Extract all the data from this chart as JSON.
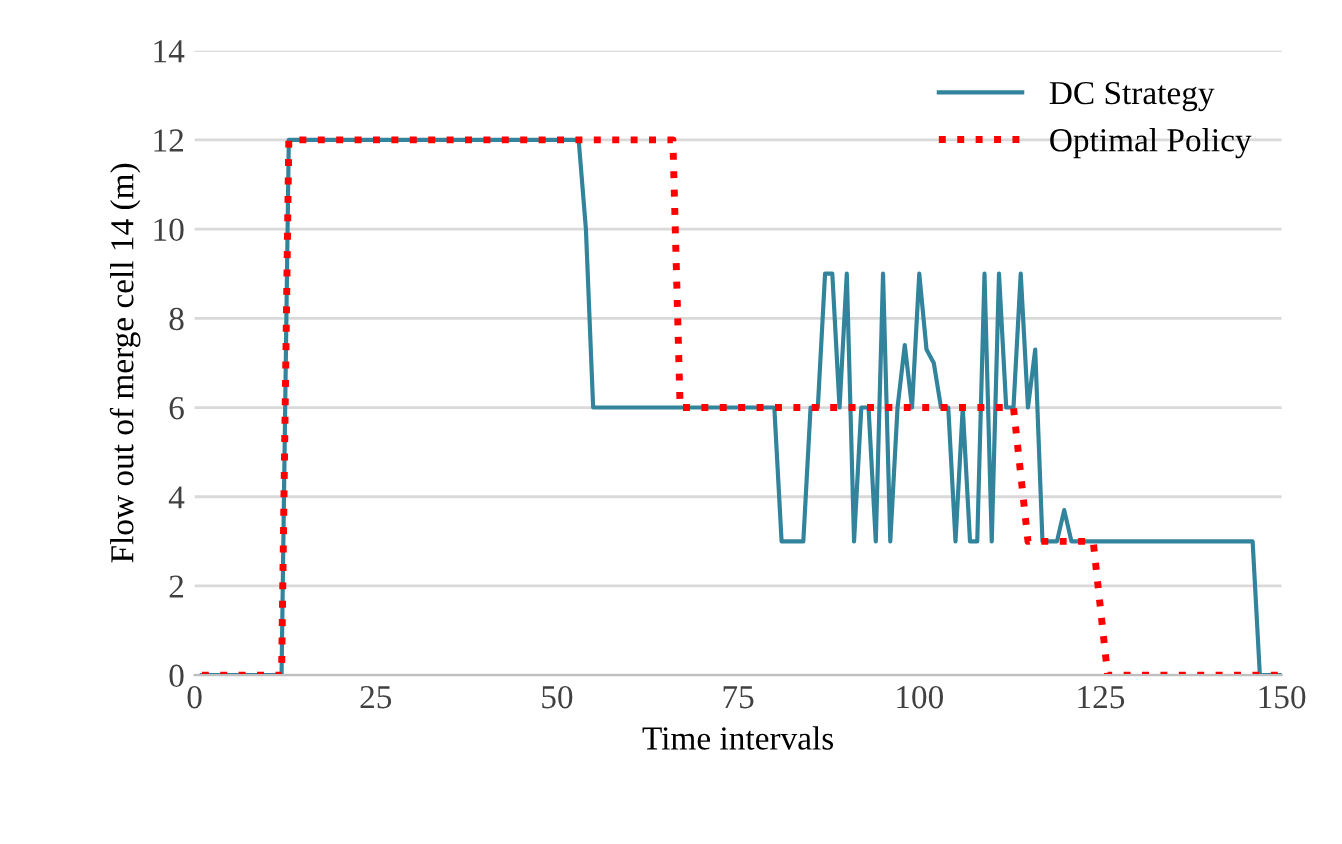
{
  "chart_data": {
    "type": "line",
    "xlabel": "Time intervals",
    "ylabel": "Flow out of merge cell 14 (m)",
    "xlim": [
      0,
      150
    ],
    "xticks": [
      0,
      25,
      50,
      75,
      100,
      125,
      150
    ],
    "ylim": [
      0,
      14
    ],
    "yticks": [
      0,
      2,
      4,
      6,
      8,
      10,
      12,
      14
    ],
    "grid": "y",
    "legend": "top right",
    "series": [
      {
        "name": "DC Strategy",
        "color": "#31849b",
        "line_style": "solid",
        "x": [
          1,
          12,
          13,
          53,
          54,
          55,
          80,
          81,
          84,
          85,
          86,
          87,
          88,
          89,
          90,
          91,
          92,
          93,
          94,
          95,
          96,
          97,
          98,
          99,
          100,
          101,
          102,
          103,
          104,
          105,
          106,
          107,
          108,
          109,
          110,
          111,
          112,
          113,
          114,
          115,
          116,
          117,
          119,
          120,
          121,
          146,
          147,
          150
        ],
        "values": [
          0,
          0,
          12,
          12,
          10,
          6,
          6,
          3,
          3,
          6,
          6,
          9,
          9,
          6,
          9,
          3,
          6,
          6,
          3,
          9,
          3,
          6,
          7.4,
          6,
          9,
          7.3,
          7,
          6,
          6,
          3,
          6,
          3,
          3,
          9,
          3,
          9,
          6,
          6,
          9,
          6,
          7.3,
          3,
          3,
          3.7,
          3,
          3,
          0,
          0
        ]
      },
      {
        "name": "Optimal Policy",
        "color": "#ff0000",
        "line_style": "dotted",
        "x": [
          1,
          12,
          13,
          66,
          67,
          113,
          115,
          124,
          126,
          150
        ],
        "values": [
          0,
          0,
          12,
          12,
          6,
          6,
          3,
          3,
          0,
          0
        ]
      }
    ]
  }
}
